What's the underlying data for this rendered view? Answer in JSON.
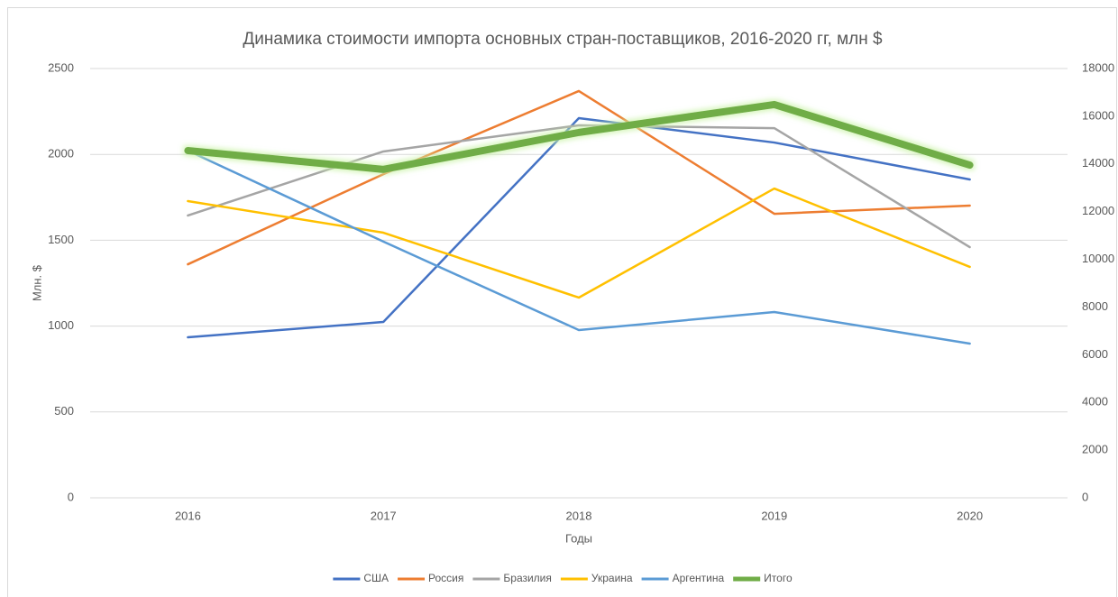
{
  "chart_data": {
    "type": "line",
    "title": "Динамика стоимости импорта основных стран-поставщиков, 2016-2020 гг, млн $",
    "x_label": "Годы",
    "y_label": "Млн. $",
    "categories": [
      "2016",
      "2017",
      "2018",
      "2019",
      "2020"
    ],
    "series": [
      {
        "name": "США",
        "color": "#4472c4",
        "values": [
          935,
          1024,
          2211,
          2069,
          1854
        ]
      },
      {
        "name": "Россия",
        "color": "#ed7d31",
        "values": [
          1360,
          1885,
          2369,
          1654,
          1702
        ]
      },
      {
        "name": "Бразилия",
        "color": "#a5a5a5",
        "values": [
          1644,
          2017,
          2169,
          2153,
          1460
        ]
      },
      {
        "name": "Украина",
        "color": "#ffc000",
        "values": [
          1728,
          1544,
          1166,
          1801,
          1345
        ]
      },
      {
        "name": "Аргентина",
        "color": "#5b9bd5",
        "values": [
          2022,
          1492,
          977,
          1082,
          898
        ]
      },
      {
        "name": "Итого",
        "color": "#70ad47",
        "axis": "y2",
        "values": [
          14560,
          13770,
          15320,
          16490,
          13950
        ]
      }
    ],
    "ylim": [
      0,
      2500
    ],
    "yticks": [
      0,
      500,
      1000,
      1500,
      2000,
      2500
    ],
    "y2lim": [
      0,
      18000
    ],
    "y2ticks": [
      0,
      2000,
      4000,
      6000,
      8000,
      10000,
      12000,
      14000,
      16000,
      18000
    ],
    "grid": true,
    "legend": "bottom"
  }
}
